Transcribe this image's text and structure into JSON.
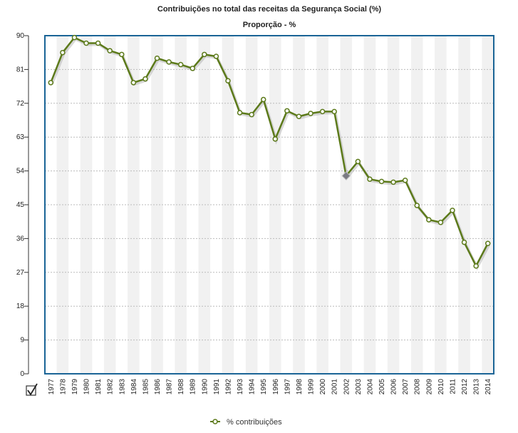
{
  "chart_data": {
    "type": "line",
    "title": "Contribuições no total das receitas da Segurança Social (%)",
    "subtitle": "Proporção - %",
    "xlabel": "",
    "ylabel": "",
    "ylim": [
      0,
      90
    ],
    "yticks": [
      "0",
      "9",
      "18",
      "27",
      "36",
      "45",
      "54",
      "63",
      "72",
      "81",
      "90"
    ],
    "grid": true,
    "legend_position": "bottom-center",
    "categories": [
      "1977",
      "1978",
      "1979",
      "1980",
      "1981",
      "1982",
      "1983",
      "1984",
      "1985",
      "1986",
      "1987",
      "1988",
      "1989",
      "1990",
      "1991",
      "1992",
      "1993",
      "1994",
      "1995",
      "1996",
      "1997",
      "1998",
      "1999",
      "2000",
      "2001",
      "2002",
      "2003",
      "2004",
      "2005",
      "2006",
      "2007",
      "2008",
      "2009",
      "2010",
      "2011",
      "2012",
      "2013",
      "2014"
    ],
    "series": [
      {
        "name": "% contribuições",
        "color": "#5c7a1a",
        "values": [
          77.5,
          85.5,
          89.5,
          88,
          88,
          86,
          85,
          77.5,
          78.5,
          84,
          83,
          82.3,
          81.3,
          85,
          84.5,
          78,
          69.5,
          69,
          73,
          62.5,
          70,
          68.5,
          69.3,
          69.8,
          69.8,
          52.7,
          56.5,
          51.8,
          51.2,
          51,
          51.5,
          44.8,
          41,
          40.3,
          43.5,
          35,
          28.7,
          34.7
        ]
      }
    ],
    "highlight_index": 25,
    "legend_icon": "checkbox-icon"
  }
}
